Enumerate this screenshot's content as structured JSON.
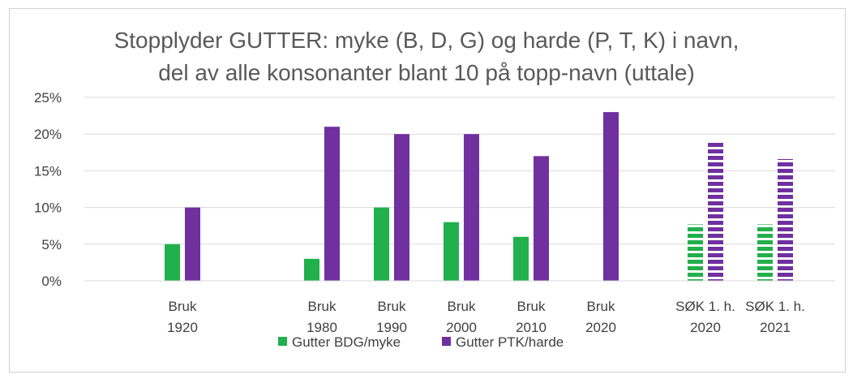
{
  "chart_data": {
    "type": "bar",
    "title_lines": [
      "Stopplyder GUTTER: myke (B, D, G) og harde (P, T, K) i navn,",
      "del av alle konsonanter blant 10 på topp-navn (uttale)"
    ],
    "categories": [
      [
        "Bruk",
        "1920"
      ],
      [
        "Bruk",
        "1980"
      ],
      [
        "Bruk",
        "1990"
      ],
      [
        "Bruk",
        "2000"
      ],
      [
        "Bruk",
        "2010"
      ],
      [
        "Bruk",
        "2020"
      ],
      [
        "SØK 1. h.",
        "2020"
      ],
      [
        "SØK 1. h.",
        "2021"
      ]
    ],
    "pattern_categories": [
      6,
      7
    ],
    "series": [
      {
        "name": "Gutter BDG/myke",
        "color": "#21b04b",
        "values": [
          5,
          3,
          10,
          8,
          6,
          null,
          7.7,
          7.7
        ]
      },
      {
        "name": "Gutter PTK/harde",
        "color": "#7030a0",
        "values": [
          10,
          21,
          20,
          20,
          17,
          23,
          19,
          16.6
        ]
      }
    ],
    "y_ticks": [
      "0%",
      "5%",
      "10%",
      "15%",
      "20%",
      "25%"
    ],
    "ylim": [
      0,
      25
    ],
    "grid": true,
    "legend_position": "bottom"
  }
}
